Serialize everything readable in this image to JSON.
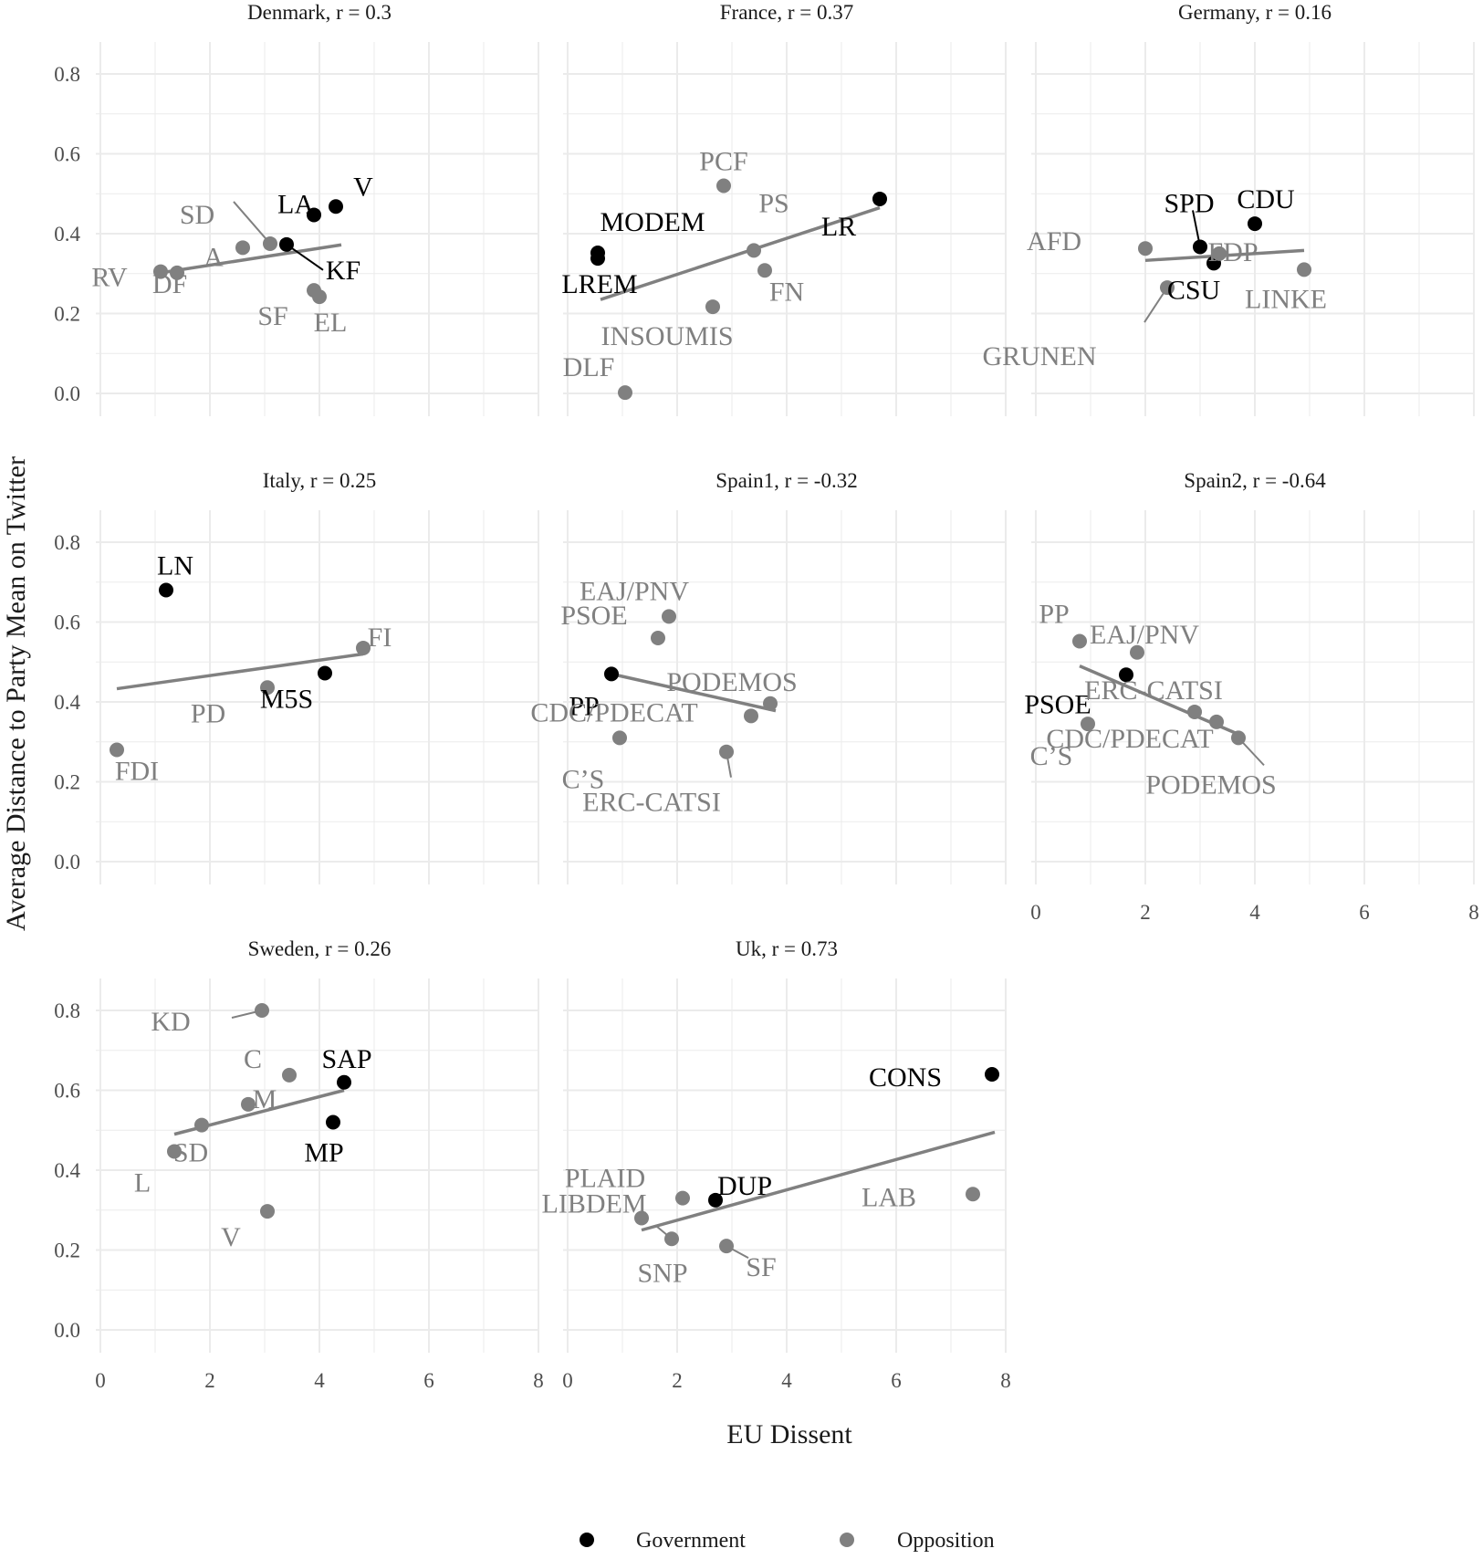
{
  "colors": {
    "government": "#000000",
    "opposition": "#808080",
    "grid": "#ebebeb",
    "fit": "#808080"
  },
  "legend": {
    "government": "Government",
    "opposition": "Opposition"
  },
  "chart_data": {
    "type": "scatter",
    "xlabel": "EU Dissent",
    "ylabel": "Average Distance to Party Mean on Twitter",
    "xlim": [
      0,
      8
    ],
    "ylim": [
      0,
      0.8
    ],
    "xticks": [
      "0",
      "2",
      "4",
      "6",
      "8"
    ],
    "yticks": [
      "0.0",
      "0.2",
      "0.4",
      "0.6",
      "0.8"
    ],
    "grid": true,
    "legend_position": "bottom",
    "panels": [
      {
        "title": "Denmark, r = 0.3",
        "fit": [
          [
            1.1,
            0.302
          ],
          [
            4.4,
            0.372
          ]
        ],
        "points": [
          {
            "label": "V",
            "x": 4.3,
            "y": 0.468,
            "group": "government"
          },
          {
            "label": "LA",
            "x": 3.9,
            "y": 0.447,
            "group": "government"
          },
          {
            "label": "KF",
            "x": 3.4,
            "y": 0.373,
            "group": "government"
          },
          {
            "label": "SD",
            "x": 3.1,
            "y": 0.375,
            "group": "opposition"
          },
          {
            "label": "A",
            "x": 2.6,
            "y": 0.365,
            "group": "opposition"
          },
          {
            "label": "RV",
            "x": 1.1,
            "y": 0.305,
            "group": "opposition"
          },
          {
            "label": "DF",
            "x": 1.4,
            "y": 0.302,
            "group": "opposition"
          },
          {
            "label": "SF",
            "x": 3.9,
            "y": 0.258,
            "group": "opposition"
          },
          {
            "label": "EL",
            "x": 4.0,
            "y": 0.242,
            "group": "opposition"
          }
        ]
      },
      {
        "title": "France, r = 0.37",
        "fit": [
          [
            0.6,
            0.235
          ],
          [
            5.7,
            0.465
          ]
        ],
        "points": [
          {
            "label": "MODEM",
            "x": 0.55,
            "y": 0.352,
            "group": "government"
          },
          {
            "label": "LREM",
            "x": 0.55,
            "y": 0.338,
            "group": "government"
          },
          {
            "label": "LR",
            "x": 5.7,
            "y": 0.487,
            "group": "government"
          },
          {
            "label": "PCF",
            "x": 2.85,
            "y": 0.52,
            "group": "opposition"
          },
          {
            "label": "PS",
            "x": 3.4,
            "y": 0.358,
            "group": "opposition"
          },
          {
            "label": "FN",
            "x": 3.6,
            "y": 0.308,
            "group": "opposition"
          },
          {
            "label": "INSOUMIS",
            "x": 2.65,
            "y": 0.217,
            "group": "opposition"
          },
          {
            "label": "DLF",
            "x": 1.05,
            "y": 0.002,
            "group": "opposition"
          }
        ]
      },
      {
        "title": "Germany, r = 0.16",
        "fit": [
          [
            2.0,
            0.333
          ],
          [
            4.9,
            0.358
          ]
        ],
        "points": [
          {
            "label": "SPD",
            "x": 3.0,
            "y": 0.367,
            "group": "government"
          },
          {
            "label": "CDU",
            "x": 4.0,
            "y": 0.425,
            "group": "government"
          },
          {
            "label": "CSU",
            "x": 3.25,
            "y": 0.326,
            "group": "government"
          },
          {
            "label": "AFD",
            "x": 2.0,
            "y": 0.363,
            "group": "opposition"
          },
          {
            "label": "FDP",
            "x": 3.35,
            "y": 0.35,
            "group": "opposition"
          },
          {
            "label": "LINKE",
            "x": 4.9,
            "y": 0.31,
            "group": "opposition"
          },
          {
            "label": "GRUNEN",
            "x": 2.4,
            "y": 0.265,
            "group": "opposition"
          }
        ]
      },
      {
        "title": "Italy, r = 0.25",
        "fit": [
          [
            0.3,
            0.433
          ],
          [
            4.8,
            0.52
          ]
        ],
        "points": [
          {
            "label": "LN",
            "x": 1.2,
            "y": 0.68,
            "group": "government"
          },
          {
            "label": "M5S",
            "x": 4.1,
            "y": 0.472,
            "group": "government"
          },
          {
            "label": "FI",
            "x": 4.8,
            "y": 0.535,
            "group": "opposition"
          },
          {
            "label": "PD",
            "x": 3.05,
            "y": 0.436,
            "group": "opposition"
          },
          {
            "label": "FDI",
            "x": 0.3,
            "y": 0.28,
            "group": "opposition"
          }
        ]
      },
      {
        "title": "Spain1, r = -0.32",
        "fit": [
          [
            0.8,
            0.47
          ],
          [
            3.8,
            0.378
          ]
        ],
        "points": [
          {
            "label": "PP",
            "x": 0.8,
            "y": 0.47,
            "group": "government"
          },
          {
            "label": "EAJ/PNV",
            "x": 1.85,
            "y": 0.614,
            "group": "opposition"
          },
          {
            "label": "PSOE",
            "x": 1.65,
            "y": 0.56,
            "group": "opposition"
          },
          {
            "label": "PODEMOS",
            "x": 3.7,
            "y": 0.396,
            "group": "opposition"
          },
          {
            "label": "CDC/PDECAT",
            "x": 3.35,
            "y": 0.365,
            "group": "opposition"
          },
          {
            "label": "C’S",
            "x": 0.95,
            "y": 0.31,
            "group": "opposition"
          },
          {
            "label": "ERC-CATSI",
            "x": 2.9,
            "y": 0.275,
            "group": "opposition"
          }
        ]
      },
      {
        "title": "Spain2, r = -0.64",
        "fit": [
          [
            0.8,
            0.49
          ],
          [
            3.75,
            0.316
          ]
        ],
        "points": [
          {
            "label": "PSOE",
            "x": 1.65,
            "y": 0.468,
            "group": "government"
          },
          {
            "label": "PP",
            "x": 0.8,
            "y": 0.552,
            "group": "opposition"
          },
          {
            "label": "EAJ/PNV",
            "x": 1.85,
            "y": 0.524,
            "group": "opposition"
          },
          {
            "label": "ERC-CATSI",
            "x": 2.9,
            "y": 0.375,
            "group": "opposition"
          },
          {
            "label": "CDC/PDECAT",
            "x": 3.3,
            "y": 0.35,
            "group": "opposition"
          },
          {
            "label": "PODEMOS",
            "x": 3.7,
            "y": 0.31,
            "group": "opposition"
          },
          {
            "label": "C’S",
            "x": 0.95,
            "y": 0.345,
            "group": "opposition"
          }
        ]
      },
      {
        "title": "Sweden, r = 0.26",
        "fit": [
          [
            1.35,
            0.49
          ],
          [
            4.45,
            0.6
          ]
        ],
        "points": [
          {
            "label": "SAP",
            "x": 4.45,
            "y": 0.62,
            "group": "government"
          },
          {
            "label": "MP",
            "x": 4.25,
            "y": 0.52,
            "group": "government"
          },
          {
            "label": "KD",
            "x": 2.95,
            "y": 0.8,
            "group": "opposition"
          },
          {
            "label": "C",
            "x": 3.45,
            "y": 0.638,
            "group": "opposition"
          },
          {
            "label": "M",
            "x": 2.7,
            "y": 0.565,
            "group": "opposition"
          },
          {
            "label": "SD",
            "x": 1.85,
            "y": 0.513,
            "group": "opposition"
          },
          {
            "label": "L",
            "x": 1.35,
            "y": 0.447,
            "group": "opposition"
          },
          {
            "label": "V",
            "x": 3.05,
            "y": 0.297,
            "group": "opposition"
          }
        ]
      },
      {
        "title": "Uk, r = 0.73",
        "fit": [
          [
            1.35,
            0.25
          ],
          [
            7.8,
            0.495
          ]
        ],
        "points": [
          {
            "label": "CONS",
            "x": 7.75,
            "y": 0.64,
            "group": "government"
          },
          {
            "label": "DUP",
            "x": 2.7,
            "y": 0.325,
            "group": "government"
          },
          {
            "label": "LAB",
            "x": 7.4,
            "y": 0.34,
            "group": "opposition"
          },
          {
            "label": "PLAID",
            "x": 2.1,
            "y": 0.33,
            "group": "opposition"
          },
          {
            "label": "LIBDEM",
            "x": 1.35,
            "y": 0.28,
            "group": "opposition"
          },
          {
            "label": "SNP",
            "x": 1.9,
            "y": 0.228,
            "group": "opposition"
          },
          {
            "label": "SF",
            "x": 2.9,
            "y": 0.21,
            "group": "opposition"
          }
        ]
      }
    ]
  }
}
